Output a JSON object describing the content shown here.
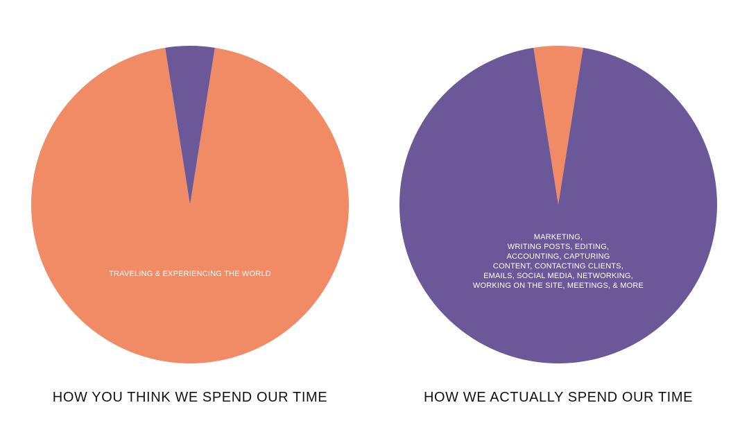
{
  "chart_data": [
    {
      "type": "pie",
      "title": "HOW YOU THINK WE SPEND OUR TIME",
      "slices": [
        {
          "label": "TRAVELING & EXPERIENCING THE WORLD",
          "value": 95,
          "color": "#F08B66"
        },
        {
          "label": "",
          "value": 5,
          "color": "#6B5898"
        }
      ]
    },
    {
      "type": "pie",
      "title": "HOW WE ACTUALLY SPEND OUR TIME",
      "slices": [
        {
          "label": "",
          "value": 5,
          "color": "#F08B66"
        },
        {
          "label_lines": [
            "MARKETING,",
            "WRITING POSTS, EDITING,",
            "ACCOUNTING, CAPTURING",
            "CONTENT, CONTACTING CLIENTS,",
            "EMAILS, SOCIAL MEDIA, NETWORKING,",
            "WORKING ON THE SITE, MEETINGS, & MORE"
          ],
          "value": 95,
          "color": "#6B5898"
        }
      ]
    }
  ]
}
